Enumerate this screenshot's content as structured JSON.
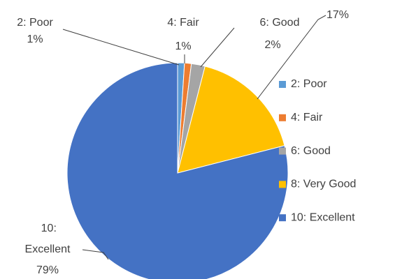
{
  "chart_data": {
    "type": "pie",
    "categories": [
      "2: Poor",
      "4: Fair",
      "6: Good",
      "8: Very Good",
      "10: Excellent"
    ],
    "values": [
      1,
      1,
      2,
      17,
      79
    ],
    "value_labels": [
      "1%",
      "1%",
      "2%",
      "17%",
      "79%"
    ],
    "colors": [
      "#5b9bd5",
      "#ed7d31",
      "#a5a5a5",
      "#ffc000",
      "#4472c4"
    ],
    "legend": "right"
  }
}
